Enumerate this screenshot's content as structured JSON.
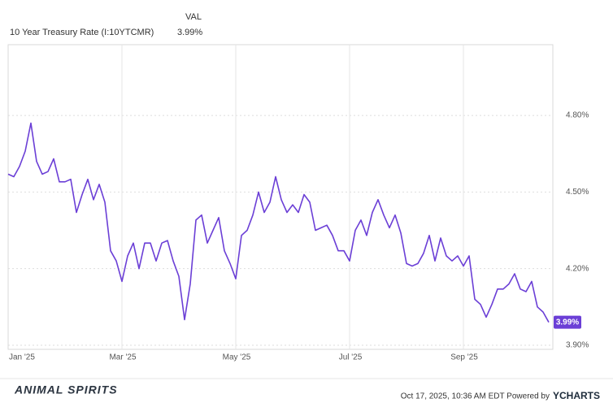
{
  "chart_data": {
    "type": "line",
    "legend_header": "VAL",
    "categories": [
      "Jan '25",
      null,
      null,
      null,
      null,
      null,
      null,
      null,
      null,
      null,
      null,
      null,
      null,
      null,
      null,
      null,
      null,
      null,
      null,
      null,
      "Mar '25",
      null,
      null,
      null,
      null,
      null,
      null,
      null,
      null,
      null,
      null,
      null,
      null,
      null,
      null,
      null,
      null,
      null,
      null,
      null,
      "May '25",
      null,
      null,
      null,
      null,
      null,
      null,
      null,
      null,
      null,
      null,
      null,
      null,
      null,
      null,
      null,
      null,
      null,
      null,
      null,
      "Jul '25",
      null,
      null,
      null,
      null,
      null,
      null,
      null,
      null,
      null,
      null,
      null,
      null,
      null,
      null,
      null,
      null,
      null,
      null,
      null,
      "Sep '25",
      null,
      null,
      null,
      null,
      null,
      null,
      null,
      null,
      null,
      null,
      null,
      null,
      null,
      null,
      null
    ],
    "series": [
      {
        "name": "10 Year Treasury Rate (I:10YTCMR)",
        "color": "#6b3fd6",
        "values": [
          4.57,
          4.56,
          4.6,
          4.66,
          4.77,
          4.62,
          4.57,
          4.58,
          4.63,
          4.54,
          4.54,
          4.55,
          4.42,
          4.49,
          4.55,
          4.47,
          4.53,
          4.46,
          4.27,
          4.23,
          4.15,
          4.25,
          4.3,
          4.2,
          4.3,
          4.3,
          4.23,
          4.3,
          4.31,
          4.23,
          4.17,
          4.0,
          4.14,
          4.39,
          4.41,
          4.3,
          4.35,
          4.4,
          4.27,
          4.22,
          4.16,
          4.33,
          4.35,
          4.41,
          4.5,
          4.42,
          4.46,
          4.56,
          4.47,
          4.42,
          4.45,
          4.42,
          4.49,
          4.46,
          4.35,
          4.36,
          4.37,
          4.33,
          4.27,
          4.27,
          4.23,
          4.35,
          4.39,
          4.33,
          4.42,
          4.47,
          4.41,
          4.36,
          4.41,
          4.34,
          4.22,
          4.21,
          4.22,
          4.26,
          4.33,
          4.23,
          4.32,
          4.25,
          4.23,
          4.25,
          4.21,
          4.25,
          4.08,
          4.06,
          4.01,
          4.06,
          4.12,
          4.12,
          4.14,
          4.18,
          4.12,
          4.11,
          4.15,
          4.05,
          4.03,
          3.99
        ],
        "value_labels": [
          null,
          null,
          null,
          null,
          null,
          null,
          null,
          null,
          null,
          null,
          null,
          null,
          null,
          null,
          null,
          null,
          null,
          null,
          null,
          null,
          null,
          null,
          null,
          null,
          null,
          null,
          null,
          null,
          null,
          null,
          null,
          null,
          null,
          null,
          null,
          null,
          null,
          null,
          null,
          null,
          null,
          null,
          null,
          null,
          null,
          null,
          null,
          null,
          null,
          null,
          null,
          null,
          null,
          null,
          null,
          null,
          null,
          null,
          null,
          null,
          null,
          null,
          null,
          null,
          null,
          null,
          null,
          null,
          null,
          null,
          null,
          null,
          null,
          null,
          null,
          null,
          null,
          null,
          null,
          null,
          null,
          null,
          null,
          null,
          null,
          null,
          null,
          null,
          null,
          null,
          null,
          null,
          null,
          null,
          null,
          "3.99%"
        ]
      }
    ],
    "ylim": [
      3.884,
      5.077
    ],
    "yticks": [
      {
        "value": 3.9,
        "label": "3.90%"
      },
      {
        "value": 4.2,
        "label": "4.20%"
      },
      {
        "value": 4.5,
        "label": "4.50%"
      },
      {
        "value": 4.8,
        "label": "4.80%"
      }
    ],
    "grid": true
  },
  "footer": {
    "logo": "ANIMAL SPIRITS",
    "timestamp": "Oct 17, 2025, 10:36 AM EDT Powered by",
    "brand": "YCHARTS"
  }
}
